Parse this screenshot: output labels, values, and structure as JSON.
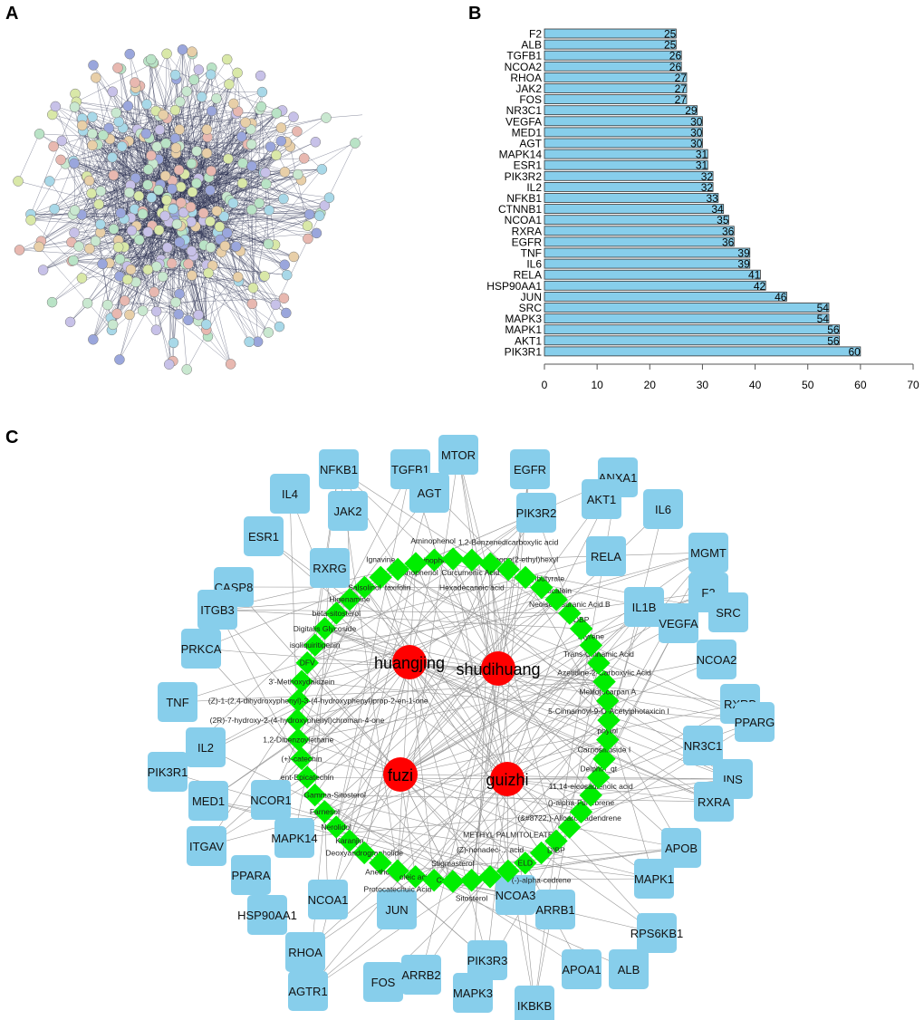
{
  "panels": {
    "a": "A",
    "b": "B",
    "c": "C"
  },
  "colors": {
    "bar_fill": "#87ceeb",
    "bar_stroke": "#333333",
    "target_fill": "#87ceeb",
    "compound_fill": "#00ee00",
    "herb_fill": "#ff0000",
    "edge": "#999999"
  },
  "chart_data": {
    "type": "bar",
    "orientation": "horizontal",
    "categories": [
      "F2",
      "ALB",
      "TGFB1",
      "NCOA2",
      "RHOA",
      "JAK2",
      "FOS",
      "NR3C1",
      "VEGFA",
      "MED1",
      "AGT",
      "MAPK14",
      "ESR1",
      "PIK3R2",
      "IL2",
      "NFKB1",
      "CTNNB1",
      "NCOA1",
      "RXRA",
      "EGFR",
      "TNF",
      "IL6",
      "RELA",
      "HSP90AA1",
      "JUN",
      "SRC",
      "MAPK3",
      "MAPK1",
      "AKT1",
      "PIK3R1"
    ],
    "values": [
      25,
      25,
      26,
      26,
      27,
      27,
      27,
      29,
      30,
      30,
      30,
      31,
      31,
      32,
      32,
      33,
      34,
      35,
      36,
      36,
      39,
      39,
      41,
      42,
      46,
      54,
      54,
      56,
      56,
      60
    ],
    "xlim": [
      0,
      70
    ],
    "xticks": [
      0,
      10,
      20,
      30,
      40,
      50,
      60,
      70
    ],
    "data_labels": true,
    "grid": false
  },
  "network": {
    "herbs": [
      "huangjing",
      "shudihuang",
      "fuzi",
      "guizhi"
    ],
    "targets": [
      "NFKB1",
      "TGFB1",
      "MTOR",
      "EGFR",
      "ANXA1",
      "IL4",
      "JAK2",
      "AGT",
      "PIK3R2",
      "AKT1",
      "IL6",
      "ESR1",
      "MGMT",
      "RXRG",
      "RELA",
      "F2",
      "CASP8",
      "ITGB3",
      "IL1B",
      "VEGFA",
      "SRC",
      "PRKCA",
      "NCOA2",
      "RXRB",
      "TNF",
      "PPARG",
      "NR3C1",
      "IL2",
      "PIK3R1",
      "INS",
      "MED1",
      "NCOR1",
      "RXRA",
      "ITGAV",
      "MAPK14",
      "APOB",
      "PPARA",
      "NCOA1",
      "MAPK1",
      "HSP90AA1",
      "JUN",
      "NCOA3",
      "ARRB1",
      "RPS6KB1",
      "RHOA",
      "AGTR1",
      "FOS",
      "ARRB2",
      "PIK3R3",
      "APOA1",
      "ALB",
      "MAPK3",
      "IKBKB"
    ],
    "compounds": [
      "Aminophenol",
      "Aminophenol",
      "taxifolin",
      "Ignavine",
      "Salsolinol",
      "Higenamine",
      "beta-sitosterol",
      "Digitalis Glycoside",
      "isoliquiritigenin",
      "DFV",
      "3'-Methoxydaidzein",
      "(Z)-1-(2,4-dihydroxyphenyl)-3-(4-hydroxyphenyl)prop-2-en-1-one",
      "(2R)-7-hydroxy-2-(4-hydroxyphenyl)chroman-4-one",
      "1,2-Dibenzoylethane",
      "(+)-catechin",
      "ent-Epicatechin",
      "Gamma-Sitosterol",
      "Farnesol",
      "Nerolidol",
      "Karanjin",
      "Deoxyandrographolide",
      "Anethole",
      "Protocatechuic Acid",
      "oleic acid",
      "Coryneine",
      "Stigmasterol",
      "Sitosterol",
      "(Z)-nonadec-... acid",
      "METHYL PALMITOLEATE",
      "ELD",
      "(-)-alpha-cedrene",
      "DIBP",
      "(&#8722;)-Alloaromadendrene",
      "()-alpha-Funebrene",
      "11,14-eicosadienoic acid",
      "Delphin_qt",
      "Carnosifloside I",
      "phytol",
      "5-Cinnamoyl-9-O-Acetylphotaxicin I",
      "Melilotocarpan A",
      "Azetidine-2-Carboxylic Acid",
      "Trans-Cinnamic Acid",
      "Styrene",
      "DBP",
      "Neoisoadsuranic Acid B",
      "baicalein",
      "hexylbutyrate",
      "mono(2-ethyl)hexyl",
      "1,2-Benzenedicarboxylic acid",
      "Curcumenic Acid",
      "Hexadecanoic acid",
      "Aminophenol"
    ]
  }
}
